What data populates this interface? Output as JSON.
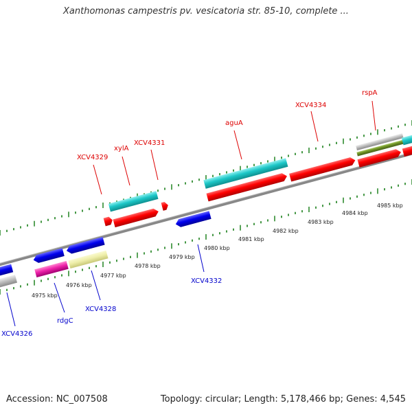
{
  "header": {
    "title": "Xanthomonas campestris pv. vesicatoria str. 85-10, complete ..."
  },
  "footer": {
    "accession": "Accession: NC_007508",
    "topology": "Topology: circular; Length: 5,178,466 bp; Genes: 4,545"
  },
  "map": {
    "kbp_labels": [
      "4975 kbp",
      "4976 kbp",
      "4977 kbp",
      "4978 kbp",
      "4979 kbp",
      "4980 kbp",
      "4981 kbp",
      "4982 kbp",
      "4983 kbp",
      "4984 kbp",
      "4985 kbp"
    ],
    "forward_gene_labels": [
      "XCV4329",
      "xylA",
      "XCV4331",
      "aguA",
      "XCV4334",
      "rspA"
    ],
    "reverse_gene_labels": [
      "XCV4326",
      "rdgC",
      "XCV4328",
      "XCV4332"
    ],
    "colors": {
      "forward_label": "#dd0000",
      "reverse_label": "#0000cc",
      "red_gene": "#ff0000",
      "cyan_gene": "#1cc7c7",
      "blue_gene": "#0000ee",
      "magenta_gene": "#ee22aa",
      "khaki_gene": "#eeeeaa",
      "olive_gene": "#6b8e23",
      "gray_gene": "#c0c0c0",
      "tick": "#2e8b2e",
      "backbone": "#888888"
    }
  }
}
